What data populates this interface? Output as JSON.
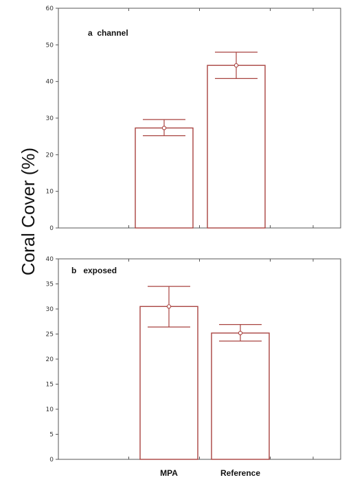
{
  "ylabel": "Coral Cover (%)",
  "colors": {
    "bar": "#a8423f",
    "axis": "#555555"
  },
  "chart_data": [
    {
      "type": "bar",
      "panel_label": "a  channel",
      "categories": [
        "MPA",
        "Reference"
      ],
      "values": [
        27.3,
        44.4
      ],
      "error_low": [
        25.2,
        40.8
      ],
      "error_high": [
        29.6,
        48.0
      ],
      "ylim": [
        0,
        60
      ],
      "yticks": [
        0,
        10,
        20,
        30,
        40,
        50,
        60
      ],
      "show_category_labels": false
    },
    {
      "type": "bar",
      "panel_label": "b   exposed",
      "categories": [
        "MPA",
        "Reference"
      ],
      "values": [
        30.5,
        25.2
      ],
      "error_low": [
        26.4,
        23.6
      ],
      "error_high": [
        34.5,
        26.9
      ],
      "ylim": [
        0,
        40
      ],
      "yticks": [
        0,
        5,
        10,
        15,
        20,
        25,
        30,
        35,
        40
      ],
      "show_category_labels": true
    }
  ]
}
